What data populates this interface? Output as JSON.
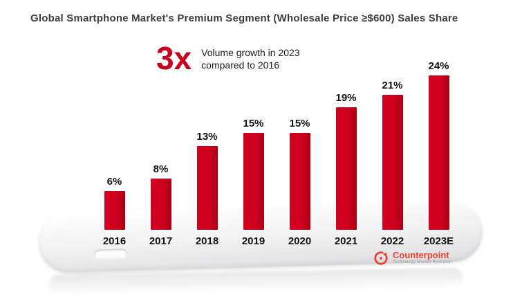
{
  "title": "Global Smartphone Market's Premium Segment (Wholesale Price ≥$600) Sales Share",
  "annotation": {
    "multiplier": "3x",
    "line1": "Volume growth in 2023",
    "line2": "compared to 2016"
  },
  "chart_data": {
    "type": "bar",
    "title": "Global Smartphone Market's Premium Segment (Wholesale Price ≥$600) Sales Share",
    "categories": [
      "2016",
      "2017",
      "2018",
      "2019",
      "2020",
      "2021",
      "2022",
      "2023E"
    ],
    "values": [
      6,
      8,
      13,
      15,
      15,
      19,
      21,
      24
    ],
    "data_labels": [
      "6%",
      "8%",
      "13%",
      "15%",
      "15%",
      "19%",
      "21%",
      "24%"
    ],
    "unit": "%",
    "xlabel": "",
    "ylabel": "",
    "ylim": [
      0,
      26
    ],
    "grid": false,
    "legend": "none",
    "bar_color": "#d10020",
    "bar_color_dark": "#a80016"
  },
  "logo": {
    "name": "Counterpoint",
    "tagline": "Technology Market Research",
    "color": "#e8402f"
  },
  "colors": {
    "accent_red": "#c8001c",
    "title_text": "#3d3d3d",
    "label_text": "#121212",
    "phone_gray": "#e9e9eb"
  }
}
